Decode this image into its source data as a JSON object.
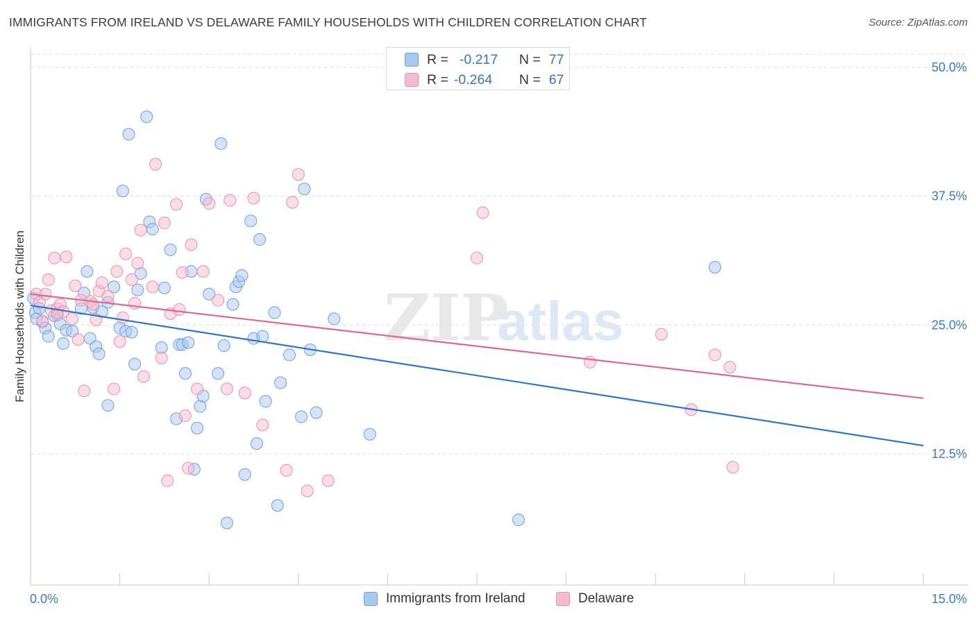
{
  "title": "IMMIGRANTS FROM IRELAND VS DELAWARE FAMILY HOUSEHOLDS WITH CHILDREN CORRELATION CHART",
  "source": "Source: ZipAtlas.com",
  "watermark": "ZIPatlas",
  "colors": {
    "blue_fill": "#a9c8f0",
    "blue_stroke": "#6c9fdc",
    "blue_line": "#2f74d0",
    "pink_fill": "#f6bccd",
    "pink_stroke": "#e890aa",
    "pink_line": "#e0688f",
    "axis_text": "#3a78c9",
    "grid": "#dedede"
  },
  "stats": {
    "r_label": "R =",
    "n_label": "N =",
    "rows": [
      {
        "r": "-0.217",
        "n": "77",
        "color": "blue"
      },
      {
        "r": "-0.264",
        "n": "67",
        "color": "pink"
      }
    ]
  },
  "legend": [
    {
      "label": "Immigrants from Ireland",
      "color": "blue"
    },
    {
      "label": "Delaware",
      "color": "pink"
    }
  ],
  "chart_data": {
    "type": "scatter",
    "xlabel": "",
    "ylabel": "Family Households with Children",
    "xlim": [
      0,
      15
    ],
    "ylim": [
      0,
      52.5
    ],
    "x_tick_labels": [
      {
        "value": 0,
        "label": "0.0%"
      },
      {
        "value": 15,
        "label": "15.0%"
      }
    ],
    "y_tick_labels": [
      {
        "value": 12.5,
        "label": "12.5%"
      },
      {
        "value": 25,
        "label": "25.0%"
      },
      {
        "value": 37.5,
        "label": "37.5%"
      },
      {
        "value": 50,
        "label": "50.0%"
      }
    ],
    "x_minor_ticks": [
      0,
      1.5,
      3,
      4.5,
      6,
      7.5,
      9,
      10.5,
      12,
      13.5,
      15
    ],
    "grid": true,
    "series": [
      {
        "name": "Immigrants from Ireland",
        "color": "blue",
        "trend": {
          "x": [
            0,
            15
          ],
          "y": [
            26.9,
            13.3
          ]
        },
        "points": [
          [
            0.05,
            27.6
          ],
          [
            0.08,
            26.2
          ],
          [
            0.1,
            25.6
          ],
          [
            0.15,
            26.6
          ],
          [
            0.2,
            25.3
          ],
          [
            0.25,
            24.7
          ],
          [
            0.3,
            23.9
          ],
          [
            0.4,
            25.9
          ],
          [
            0.45,
            26.2
          ],
          [
            0.5,
            25.1
          ],
          [
            0.55,
            23.2
          ],
          [
            0.6,
            24.5
          ],
          [
            0.7,
            24.4
          ],
          [
            0.85,
            26.6
          ],
          [
            0.9,
            28.1
          ],
          [
            0.95,
            30.2
          ],
          [
            1.0,
            23.7
          ],
          [
            1.05,
            26.7
          ],
          [
            1.1,
            22.9
          ],
          [
            1.15,
            22.2
          ],
          [
            1.2,
            26.3
          ],
          [
            1.3,
            27.2
          ],
          [
            1.3,
            17.2
          ],
          [
            1.4,
            28.7
          ],
          [
            1.5,
            24.7
          ],
          [
            1.55,
            38.0
          ],
          [
            1.6,
            24.4
          ],
          [
            1.65,
            43.5
          ],
          [
            1.7,
            24.3
          ],
          [
            1.75,
            21.2
          ],
          [
            1.8,
            28.4
          ],
          [
            1.85,
            30.0
          ],
          [
            1.95,
            45.2
          ],
          [
            2.0,
            35.0
          ],
          [
            2.05,
            34.3
          ],
          [
            2.2,
            22.8
          ],
          [
            2.25,
            28.6
          ],
          [
            2.35,
            32.3
          ],
          [
            2.45,
            15.9
          ],
          [
            2.5,
            23.1
          ],
          [
            2.55,
            23.1
          ],
          [
            2.6,
            20.3
          ],
          [
            2.65,
            23.3
          ],
          [
            2.7,
            30.2
          ],
          [
            2.75,
            11.0
          ],
          [
            2.8,
            15.0
          ],
          [
            2.85,
            17.1
          ],
          [
            2.9,
            18.1
          ],
          [
            2.95,
            37.2
          ],
          [
            3.0,
            28.0
          ],
          [
            3.15,
            20.3
          ],
          [
            3.2,
            42.6
          ],
          [
            3.25,
            23.0
          ],
          [
            3.3,
            5.8
          ],
          [
            3.4,
            27.0
          ],
          [
            3.45,
            28.7
          ],
          [
            3.5,
            29.2
          ],
          [
            3.55,
            29.8
          ],
          [
            3.6,
            10.5
          ],
          [
            3.7,
            35.1
          ],
          [
            3.75,
            23.7
          ],
          [
            3.8,
            13.5
          ],
          [
            3.85,
            33.3
          ],
          [
            3.9,
            23.9
          ],
          [
            3.95,
            17.6
          ],
          [
            4.1,
            26.2
          ],
          [
            4.15,
            7.5
          ],
          [
            4.2,
            19.4
          ],
          [
            4.35,
            22.1
          ],
          [
            4.55,
            16.1
          ],
          [
            4.6,
            38.2
          ],
          [
            4.7,
            22.6
          ],
          [
            4.8,
            16.5
          ],
          [
            5.1,
            25.6
          ],
          [
            5.7,
            14.4
          ],
          [
            8.2,
            6.1
          ],
          [
            11.5,
            30.6
          ]
        ]
      },
      {
        "name": "Delaware",
        "color": "pink",
        "trend": {
          "x": [
            0,
            15
          ],
          "y": [
            28.0,
            17.9
          ]
        },
        "points": [
          [
            0.1,
            28.0
          ],
          [
            0.15,
            27.2
          ],
          [
            0.2,
            25.4
          ],
          [
            0.25,
            28.0
          ],
          [
            0.3,
            29.4
          ],
          [
            0.35,
            26.4
          ],
          [
            0.4,
            31.5
          ],
          [
            0.45,
            26.6
          ],
          [
            0.5,
            27.0
          ],
          [
            0.55,
            26.3
          ],
          [
            0.6,
            31.6
          ],
          [
            0.7,
            25.6
          ],
          [
            0.75,
            28.8
          ],
          [
            0.8,
            23.6
          ],
          [
            0.85,
            27.4
          ],
          [
            0.9,
            18.6
          ],
          [
            1.0,
            27.3
          ],
          [
            1.05,
            27.0
          ],
          [
            1.1,
            25.5
          ],
          [
            1.15,
            28.3
          ],
          [
            1.2,
            29.1
          ],
          [
            1.3,
            27.8
          ],
          [
            1.4,
            18.8
          ],
          [
            1.45,
            30.2
          ],
          [
            1.5,
            23.4
          ],
          [
            1.55,
            25.7
          ],
          [
            1.6,
            31.9
          ],
          [
            1.7,
            29.4
          ],
          [
            1.75,
            27.1
          ],
          [
            1.8,
            31.0
          ],
          [
            1.85,
            34.2
          ],
          [
            1.9,
            20.0
          ],
          [
            2.05,
            28.7
          ],
          [
            2.1,
            40.6
          ],
          [
            2.2,
            21.8
          ],
          [
            2.25,
            34.9
          ],
          [
            2.3,
            9.9
          ],
          [
            2.35,
            26.1
          ],
          [
            2.45,
            36.7
          ],
          [
            2.5,
            26.5
          ],
          [
            2.55,
            30.1
          ],
          [
            2.6,
            16.2
          ],
          [
            2.65,
            11.1
          ],
          [
            2.7,
            32.8
          ],
          [
            2.8,
            18.8
          ],
          [
            2.9,
            30.2
          ],
          [
            3.0,
            36.8
          ],
          [
            3.15,
            27.4
          ],
          [
            3.3,
            18.8
          ],
          [
            3.35,
            37.1
          ],
          [
            3.6,
            18.4
          ],
          [
            3.75,
            37.3
          ],
          [
            3.9,
            15.3
          ],
          [
            4.3,
            10.9
          ],
          [
            4.4,
            36.9
          ],
          [
            4.5,
            39.6
          ],
          [
            4.65,
            8.9
          ],
          [
            5.0,
            9.9
          ],
          [
            7.5,
            31.5
          ],
          [
            7.6,
            35.9
          ],
          [
            9.4,
            21.4
          ],
          [
            10.6,
            24.1
          ],
          [
            11.1,
            16.8
          ],
          [
            11.5,
            22.1
          ],
          [
            11.75,
            20.9
          ],
          [
            11.8,
            11.2
          ],
          [
            0.45,
            26.0
          ]
        ]
      }
    ]
  }
}
